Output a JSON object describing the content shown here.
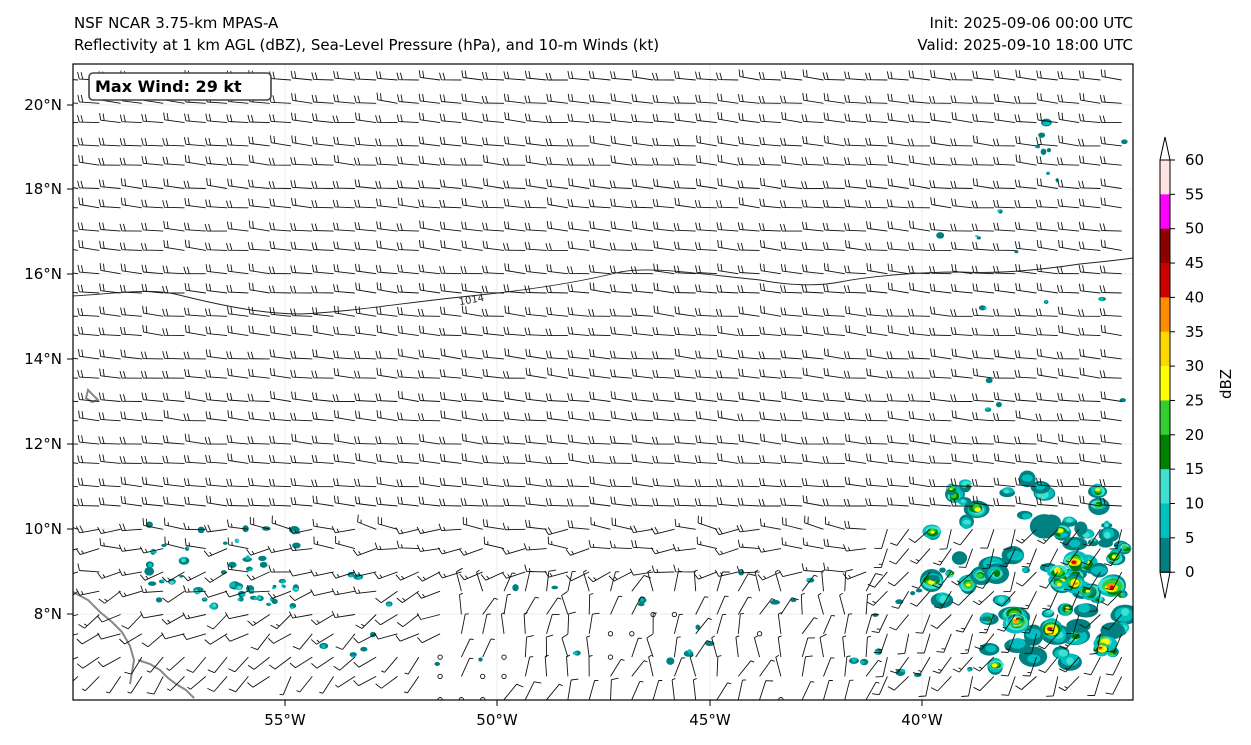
{
  "header": {
    "title_left": "NSF NCAR 3.75-km MPAS-A",
    "subtitle_left": "Reflectivity at 1 km AGL (dBZ), Sea-Level Pressure (hPa), and 10-m Winds (kt)",
    "init": "Init: 2025-09-06 00:00 UTC",
    "valid": "Valid: 2025-09-10 18:00 UTC"
  },
  "map": {
    "max_wind_label": "Max Wind: 29 kt",
    "contour_label": "1014",
    "lat_labels": [
      "20°N",
      "18°N",
      "16°N",
      "14°N",
      "12°N",
      "10°N",
      "8°N"
    ],
    "lon_labels": [
      "55°W",
      "50°W",
      "45°W",
      "40°W"
    ]
  },
  "colorbar": {
    "label": "dBZ",
    "ticks": [
      "60",
      "55",
      "50",
      "45",
      "40",
      "35",
      "30",
      "25",
      "20",
      "15",
      "10",
      "5",
      "0"
    ],
    "colors": [
      "#008080",
      "#00bfbf",
      "#40e0d0",
      "#008000",
      "#32cd32",
      "#ffff00",
      "#ffd700",
      "#ff8c00",
      "#cc0000",
      "#8b0000",
      "#ff00ff",
      "#ffe4e1"
    ]
  }
}
